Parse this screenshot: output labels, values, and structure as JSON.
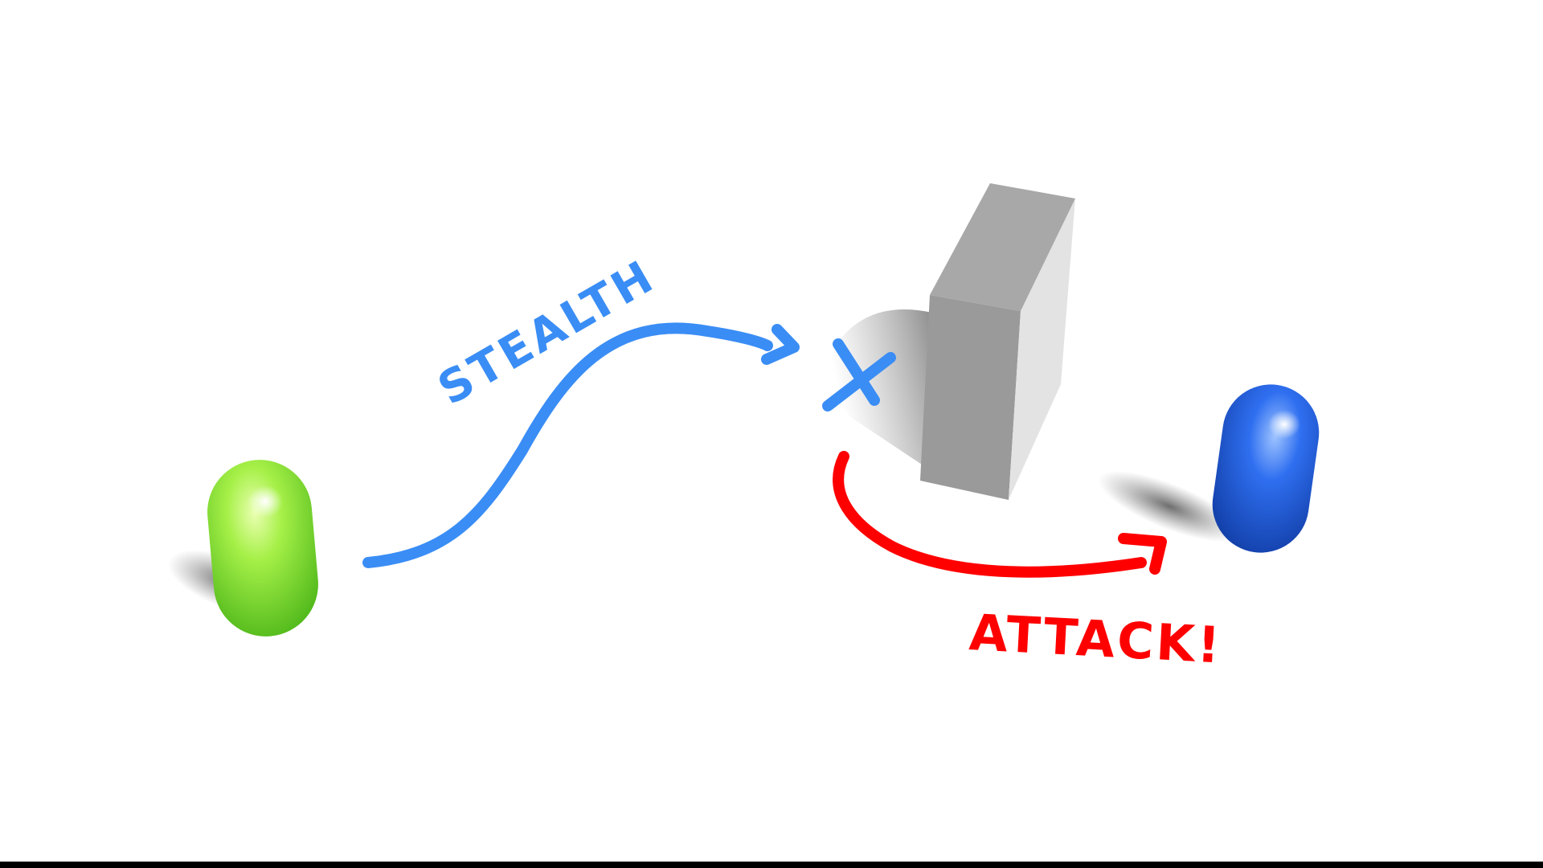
{
  "labels": {
    "stealth": "STEALTH",
    "attack": "ATTACK!"
  },
  "colors": {
    "background": "#ffffff",
    "stealth_path": "#3a8df5",
    "attack_path": "#ff0000",
    "green_capsule": "#8ee83a",
    "blue_capsule": "#1f5fe0",
    "box_front": "#9a9a9a",
    "box_side": "#dcdcdc",
    "box_top": "#b0b0b0",
    "shadow": "#6e6e6e",
    "bottom_bar": "#000000"
  },
  "icons": {
    "stealth_end": "arrowhead",
    "waypoint": "x-mark",
    "attack_end": "arrowhead"
  }
}
